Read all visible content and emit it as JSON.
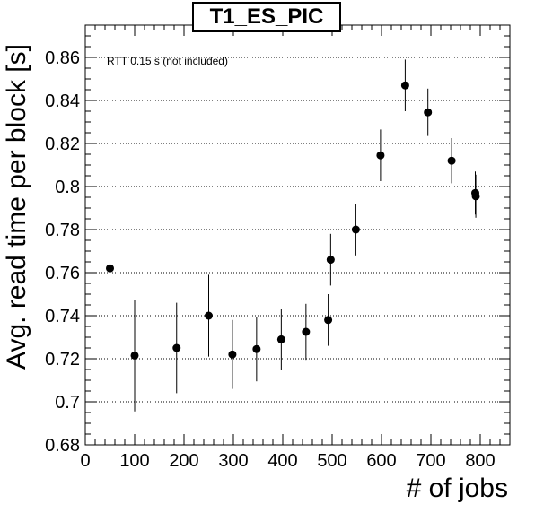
{
  "chart_data": {
    "type": "scatter",
    "title": "T1_ES_PIC",
    "xlabel": "# of jobs",
    "ylabel": "Avg. read time per block [s]",
    "annotation": "RTT 0.15 s (not included)",
    "xlim": [
      0,
      860
    ],
    "ylim": [
      0.68,
      0.875
    ],
    "xticks": [
      0,
      100,
      200,
      300,
      400,
      500,
      600,
      700,
      800
    ],
    "yticks": [
      0.68,
      0.7,
      0.72,
      0.74,
      0.76,
      0.78,
      0.8,
      0.82,
      0.84,
      0.86
    ],
    "ytick_labels": [
      "0.68",
      "0.7",
      "0.72",
      "0.74",
      "0.76",
      "0.78",
      "0.8",
      "0.82",
      "0.84",
      "0.86"
    ],
    "grid": "horizontal dotted",
    "marker_color": "#000000",
    "points": [
      {
        "x": 50,
        "y": 0.762,
        "err": 0.038
      },
      {
        "x": 100,
        "y": 0.7215,
        "err": 0.026
      },
      {
        "x": 185,
        "y": 0.725,
        "err": 0.021
      },
      {
        "x": 250,
        "y": 0.74,
        "err": 0.019
      },
      {
        "x": 298,
        "y": 0.722,
        "err": 0.016
      },
      {
        "x": 347,
        "y": 0.7245,
        "err": 0.015
      },
      {
        "x": 397,
        "y": 0.729,
        "err": 0.014
      },
      {
        "x": 447,
        "y": 0.7325,
        "err": 0.013
      },
      {
        "x": 492,
        "y": 0.738,
        "err": 0.012
      },
      {
        "x": 497,
        "y": 0.766,
        "err": 0.012
      },
      {
        "x": 548,
        "y": 0.78,
        "err": 0.012
      },
      {
        "x": 598,
        "y": 0.8145,
        "err": 0.012
      },
      {
        "x": 648,
        "y": 0.847,
        "err": 0.012
      },
      {
        "x": 694,
        "y": 0.8345,
        "err": 0.011
      },
      {
        "x": 742,
        "y": 0.812,
        "err": 0.0105
      },
      {
        "x": 790,
        "y": 0.797,
        "err": 0.01
      },
      {
        "x": 791,
        "y": 0.7955,
        "err": 0.01
      }
    ]
  }
}
